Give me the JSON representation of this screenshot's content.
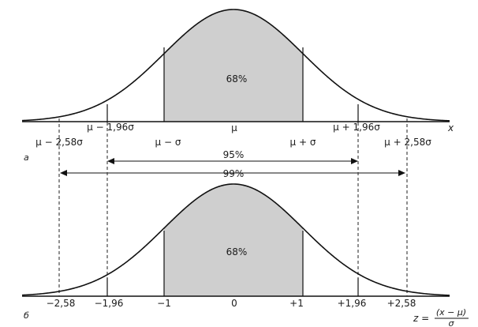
{
  "panel_a": {
    "panel_letter": "а",
    "axis_label": "x",
    "center_percent": "68%",
    "labels": {
      "mu": "μ",
      "mu_minus_sigma": "μ − σ",
      "mu_plus_sigma": "μ + σ",
      "mu_minus_196": "μ − 1,96σ",
      "mu_plus_196": "μ + 1,96σ",
      "mu_minus_258": "μ − 2,58σ",
      "mu_plus_258": "μ + 2,58σ"
    }
  },
  "intervals": {
    "p95": "95%",
    "p99": "99%"
  },
  "panel_b": {
    "panel_letter": "б",
    "center_percent": "68%",
    "ticks": {
      "m258": "−2,58",
      "m196": "−1,96",
      "m1": "−1",
      "zero": "0",
      "p1": "+1",
      "p196": "+1,96",
      "p258": "+2,58"
    },
    "z_formula": {
      "lhs": "z =",
      "numerator": "(x − μ)",
      "denominator": "σ"
    }
  },
  "colors": {
    "curve": "#111111",
    "shade": "#cfcfcf",
    "background": "#ffffff"
  }
}
